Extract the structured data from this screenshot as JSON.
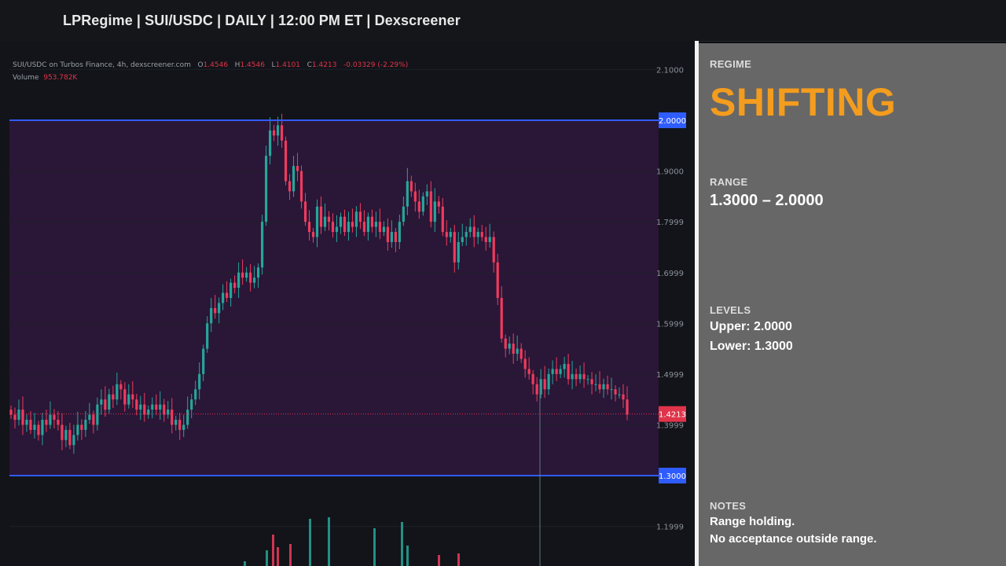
{
  "header": {
    "title": "LPRegime | SUI/USDC | DAILY | 12:00 PM ET | Dexscreener"
  },
  "chart": {
    "legend_main": "SUI/USDC on Turbos Finance, 4h, dexscreener.com",
    "ohlc": {
      "open_label": "O",
      "open": "1.4546",
      "high_label": "H",
      "high": "1.4546",
      "low_label": "L",
      "low": "1.4101",
      "close_label": "C",
      "close": "1.4213",
      "change": "-0.03329 (-2.29%)"
    },
    "volume_label": "Volume",
    "volume_value": "953.782K",
    "price_axis": [
      "2.1000",
      "1.9000",
      "1.7999",
      "1.6999",
      "1.5999",
      "1.4999",
      "1.3999",
      "1.1999"
    ],
    "upper_level_tag": "2.0000",
    "lower_level_tag": "1.3000",
    "current_price_tag": "1.4213",
    "colors": {
      "up": "#26a69a",
      "down": "#ef3b5d",
      "level_line": "#2f5cff",
      "range_fill": "#2a1637",
      "current_price": "#e0344a"
    }
  },
  "chart_data": {
    "type": "candlestick",
    "y_unit": "USDC",
    "ylim": [
      1.13,
      2.13
    ],
    "levels": {
      "upper": 2.0,
      "lower": 1.3,
      "current": 1.4213
    },
    "closes": [
      1.42,
      1.41,
      1.43,
      1.4,
      1.41,
      1.39,
      1.4,
      1.38,
      1.41,
      1.4,
      1.42,
      1.41,
      1.4,
      1.37,
      1.39,
      1.36,
      1.38,
      1.4,
      1.39,
      1.41,
      1.42,
      1.4,
      1.44,
      1.45,
      1.43,
      1.46,
      1.45,
      1.48,
      1.47,
      1.44,
      1.46,
      1.45,
      1.43,
      1.44,
      1.42,
      1.43,
      1.44,
      1.43,
      1.44,
      1.42,
      1.43,
      1.4,
      1.41,
      1.39,
      1.4,
      1.43,
      1.45,
      1.47,
      1.5,
      1.55,
      1.6,
      1.63,
      1.62,
      1.64,
      1.66,
      1.65,
      1.68,
      1.67,
      1.7,
      1.69,
      1.7,
      1.68,
      1.69,
      1.71,
      1.8,
      1.93,
      1.98,
      1.97,
      1.99,
      1.96,
      1.88,
      1.86,
      1.91,
      1.9,
      1.84,
      1.8,
      1.78,
      1.77,
      1.83,
      1.79,
      1.81,
      1.8,
      1.78,
      1.79,
      1.81,
      1.78,
      1.8,
      1.79,
      1.82,
      1.8,
      1.78,
      1.81,
      1.79,
      1.8,
      1.78,
      1.79,
      1.76,
      1.78,
      1.76,
      1.8,
      1.83,
      1.88,
      1.86,
      1.84,
      1.82,
      1.85,
      1.86,
      1.8,
      1.84,
      1.83,
      1.78,
      1.77,
      1.78,
      1.72,
      1.76,
      1.77,
      1.78,
      1.79,
      1.77,
      1.78,
      1.77,
      1.76,
      1.77,
      1.72,
      1.65,
      1.57,
      1.55,
      1.56,
      1.54,
      1.55,
      1.53,
      1.51,
      1.5,
      1.48,
      1.46,
      1.49,
      1.47,
      1.5,
      1.51,
      1.5,
      1.51,
      1.52,
      1.49,
      1.5,
      1.49,
      1.5,
      1.49,
      1.49,
      1.48,
      1.48,
      1.47,
      1.48,
      1.47,
      1.47,
      1.46,
      1.46,
      1.45,
      1.42
    ],
    "volume": [
      0,
      0,
      0,
      0,
      0,
      0,
      0,
      0,
      0,
      0,
      0,
      0,
      0,
      0,
      0,
      0,
      0,
      0,
      0,
      0,
      0,
      0,
      0,
      0,
      0,
      0,
      0,
      0,
      0,
      0,
      0,
      0,
      0,
      0,
      0,
      0,
      0,
      0,
      0,
      0,
      0,
      0,
      0,
      0,
      0,
      0,
      0,
      0,
      0,
      0,
      0,
      0,
      0,
      0,
      0,
      0,
      0,
      0,
      0,
      0,
      0,
      0,
      0,
      0,
      0,
      0,
      0,
      0,
      0,
      0,
      0,
      0,
      0,
      0,
      0,
      0,
      0,
      0,
      0,
      0,
      0,
      0,
      0,
      0,
      0,
      0,
      0,
      0,
      0,
      0,
      0,
      0,
      0,
      0,
      0,
      0,
      0,
      0,
      0,
      0,
      0,
      0,
      0,
      0,
      0,
      0,
      0,
      0,
      0,
      0,
      0,
      0,
      0,
      0,
      0,
      0,
      0,
      0,
      0,
      0,
      0,
      0,
      0,
      0,
      0,
      0,
      0,
      0,
      0,
      0,
      0,
      0,
      0,
      0,
      0,
      0,
      0,
      0,
      0,
      0,
      0,
      0,
      0,
      0,
      0,
      0,
      0,
      0,
      0,
      0,
      0,
      0,
      0,
      0,
      0,
      0,
      0,
      0,
      0,
      0,
      0,
      0,
      0,
      0
    ]
  },
  "panel": {
    "regime_label": "REGIME",
    "regime_value": "SHIFTING",
    "range_label": "RANGE",
    "range_value": "1.3000 – 2.0000",
    "levels_label": "LEVELS",
    "upper": "Upper: 2.0000",
    "lower": "Lower: 1.3000",
    "notes_label": "NOTES",
    "note_1": "Range holding.",
    "note_2": "No acceptance outside range."
  }
}
